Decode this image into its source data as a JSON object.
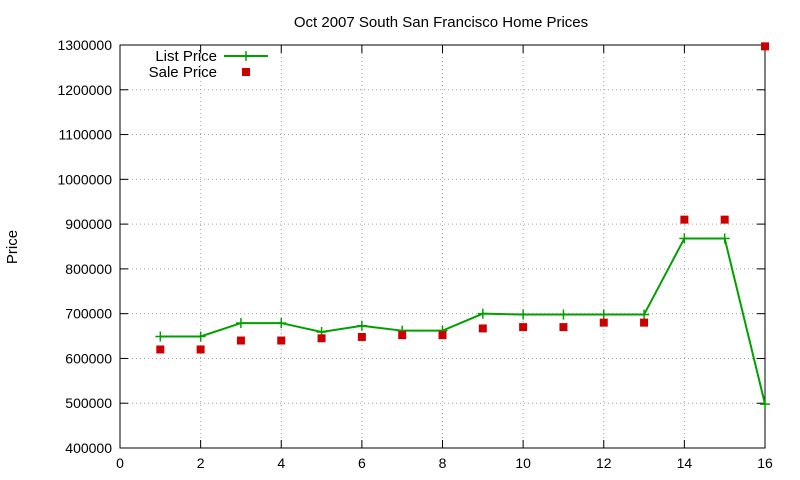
{
  "chart_data": {
    "type": "line",
    "title": "Oct 2007 South San Francisco Home Prices",
    "xlabel": "",
    "ylabel": "Price",
    "xlim": [
      0,
      16
    ],
    "ylim": [
      400000,
      1300000
    ],
    "xticks": [
      0,
      2,
      4,
      6,
      8,
      10,
      12,
      14,
      16
    ],
    "yticks": [
      400000,
      500000,
      600000,
      700000,
      800000,
      900000,
      1000000,
      1100000,
      1200000,
      1300000
    ],
    "grid": true,
    "legend_position": "top-left",
    "series": [
      {
        "name": "List Price",
        "style": "line+plus",
        "color": "#00a000",
        "x": [
          1,
          2,
          3,
          4,
          5,
          6,
          7,
          8,
          9,
          10,
          11,
          12,
          13,
          14,
          15,
          16
        ],
        "values": [
          649000,
          649000,
          679000,
          679000,
          659000,
          673000,
          662000,
          662000,
          700000,
          698000,
          698000,
          698000,
          698000,
          868000,
          868000,
          498000
        ]
      },
      {
        "name": "Sale Price",
        "style": "square",
        "color": "#cc0000",
        "x": [
          1,
          2,
          3,
          4,
          5,
          6,
          7,
          8,
          9,
          10,
          11,
          12,
          13,
          14,
          15,
          16
        ],
        "values": [
          620000,
          620000,
          640000,
          640000,
          645000,
          648000,
          652000,
          652000,
          667000,
          670000,
          670000,
          680000,
          680000,
          910000,
          910000,
          1297000
        ]
      }
    ]
  }
}
